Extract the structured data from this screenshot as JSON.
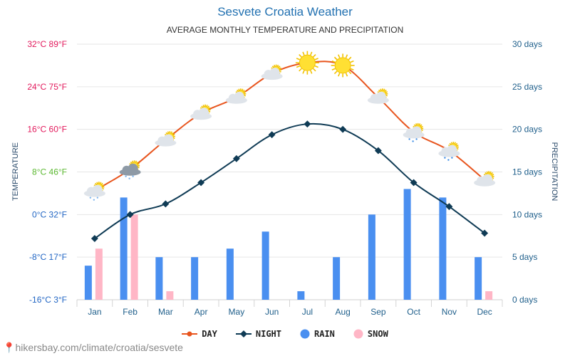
{
  "header": {
    "title": "Sesvete Croatia Weather",
    "subtitle": "AVERAGE MONTHLY TEMPERATURE AND PRECIPITATION"
  },
  "footer": {
    "watermark": "hikersbay.com/climate/croatia/sesvete"
  },
  "colors": {
    "day": "#e8551e",
    "night": "#0f3b55",
    "rain": "#4a8ff0",
    "snow": "#ffb6c6",
    "grid": "#e6e6e6",
    "title": "#2271b1"
  },
  "chart_data": {
    "type": "line+bar",
    "title": "Sesvete Croatia Weather",
    "subtitle": "AVERAGE MONTHLY TEMPERATURE AND PRECIPITATION",
    "categories": [
      "Jan",
      "Feb",
      "Mar",
      "Apr",
      "May",
      "Jun",
      "Jul",
      "Aug",
      "Sep",
      "Oct",
      "Nov",
      "Dec"
    ],
    "left_axis": {
      "label": "TEMPERATURE",
      "range": [
        -16,
        32
      ],
      "ticks": [
        {
          "value": 32,
          "label": "32°C 89°F",
          "color": "#e2185b"
        },
        {
          "value": 24,
          "label": "24°C 75°F",
          "color": "#e2185b"
        },
        {
          "value": 16,
          "label": "16°C 60°F",
          "color": "#e2185b"
        },
        {
          "value": 8,
          "label": "8°C 46°F",
          "color": "#5bb830"
        },
        {
          "value": 0,
          "label": "0°C 32°F",
          "color": "#2266c4"
        },
        {
          "value": -8,
          "label": "-8°C 17°F",
          "color": "#2266c4"
        },
        {
          "value": -16,
          "label": "-16°C 3°F",
          "color": "#2266c4"
        }
      ]
    },
    "right_axis": {
      "label": "PRECIPITATION",
      "range": [
        0,
        30
      ],
      "ticks": [
        {
          "value": 30,
          "label": "30 days"
        },
        {
          "value": 25,
          "label": "25 days"
        },
        {
          "value": 20,
          "label": "20 days"
        },
        {
          "value": 15,
          "label": "15 days"
        },
        {
          "value": 10,
          "label": "10 days"
        },
        {
          "value": 5,
          "label": "5 days"
        },
        {
          "value": 0,
          "label": "0 days"
        }
      ]
    },
    "series": [
      {
        "name": "DAY",
        "kind": "line",
        "axis": "left",
        "values": [
          4.5,
          8.5,
          14,
          19,
          22,
          26.5,
          28.5,
          28,
          22,
          15.5,
          12,
          6.5
        ],
        "weather": [
          "cloud-snow-sun",
          "cloud-snow-sun",
          "partly-cloudy",
          "partly-cloudy",
          "partly-cloudy",
          "partly-cloudy",
          "sunny",
          "sunny",
          "partly-cloudy",
          "cloud-rain-sun",
          "cloud-rain-sun",
          "partly-cloudy"
        ]
      },
      {
        "name": "NIGHT",
        "kind": "line",
        "axis": "right-temp",
        "values": [
          -4.5,
          0,
          2,
          6,
          10.5,
          15,
          17,
          16,
          12,
          6,
          1.5,
          -3.5
        ]
      },
      {
        "name": "RAIN",
        "kind": "bar",
        "axis": "right",
        "values": [
          4,
          12,
          5,
          5,
          6,
          8,
          1,
          5,
          10,
          13,
          12,
          5
        ]
      },
      {
        "name": "SNOW",
        "kind": "bar",
        "axis": "right",
        "values": [
          6,
          10,
          1,
          0,
          0,
          0,
          0,
          0,
          0,
          0,
          0,
          1
        ]
      }
    ],
    "legend": [
      "DAY",
      "NIGHT",
      "RAIN",
      "SNOW"
    ],
    "legend_position": "bottom-center"
  }
}
